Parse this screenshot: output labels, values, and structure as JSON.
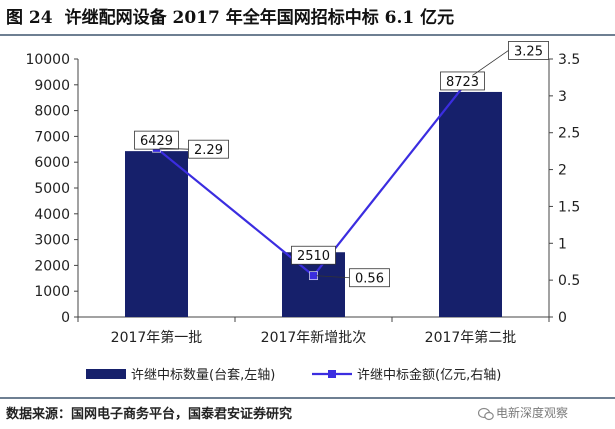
{
  "figure": {
    "number": "图 24",
    "title": "许继配网设备 2017 年全年国网招标中标 6.1 亿元"
  },
  "source_note": "数据来源：国网电子商务平台，国泰君安证券研究",
  "watermark": "电新深度观察",
  "colors": {
    "bar": "#16206b",
    "line": "#3b2de0",
    "marker": "#3b2de0",
    "rule": "#6e7f92"
  },
  "chart_data": {
    "type": "bar",
    "categories": [
      "2017年第一批",
      "2017年新增批次",
      "2017年第二批"
    ],
    "series": [
      {
        "name": "许继中标数量(台套,左轴)",
        "type": "bar",
        "axis": "left",
        "values": [
          6429,
          2510,
          8723
        ],
        "labels": [
          "6429",
          "2510",
          "8723"
        ]
      },
      {
        "name": "许继中标金额(亿元,右轴)",
        "type": "line",
        "axis": "right",
        "values": [
          2.29,
          0.56,
          3.25
        ],
        "labels": [
          "2.29",
          "0.56",
          "3.25"
        ]
      }
    ],
    "y_left": {
      "ylim": [
        0,
        10000
      ],
      "ticks": [
        "0",
        "1000",
        "2000",
        "3000",
        "4000",
        "5000",
        "6000",
        "7000",
        "8000",
        "9000",
        "10000"
      ]
    },
    "y_right": {
      "ylim": [
        0,
        3.5
      ],
      "ticks": [
        "0",
        "0.5",
        "1",
        "1.5",
        "2",
        "2.5",
        "3",
        "3.5"
      ]
    },
    "grid": false,
    "legend_position": "bottom"
  }
}
